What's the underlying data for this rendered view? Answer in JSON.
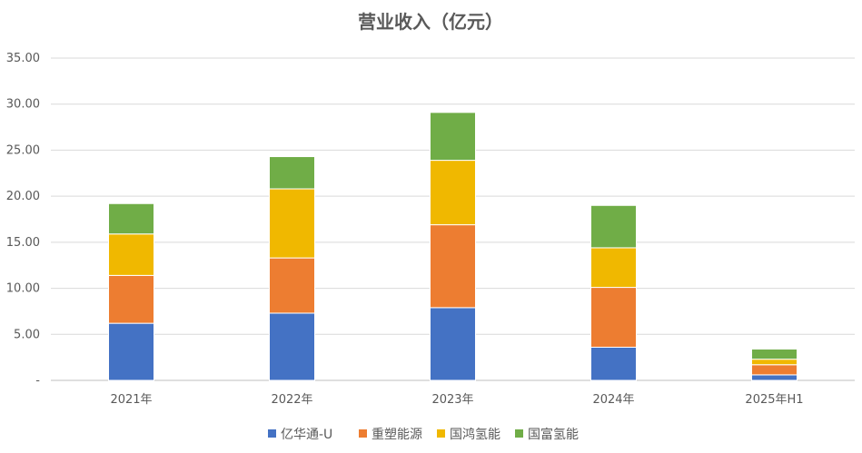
{
  "chart_data": {
    "type": "bar",
    "stacked": true,
    "title": "营业收入（亿元）",
    "xlabel": "",
    "ylabel": "",
    "categories": [
      "2021年",
      "2022年",
      "2023年",
      "2024年",
      "2025年H1"
    ],
    "ylim": [
      0,
      35
    ],
    "yticks": [
      "-",
      "5.00",
      "10.00",
      "15.00",
      "20.00",
      "25.00",
      "30.00",
      "35.00"
    ],
    "grid": true,
    "legend_position": "bottom",
    "series": [
      {
        "name": "亿华通-U",
        "color": "#4472C4",
        "values": [
          6.2,
          7.3,
          7.9,
          3.6,
          0.6
        ]
      },
      {
        "name": "重塑能源",
        "color": "#ED7D31",
        "values": [
          5.2,
          6.0,
          9.0,
          6.5,
          1.1
        ]
      },
      {
        "name": "国鸿氢能",
        "color": "#F0B800",
        "values": [
          4.5,
          7.5,
          7.0,
          4.3,
          0.6
        ]
      },
      {
        "name": "国富氢能",
        "color": "#70AD47",
        "values": [
          3.3,
          3.5,
          5.2,
          4.6,
          1.1
        ]
      }
    ]
  }
}
